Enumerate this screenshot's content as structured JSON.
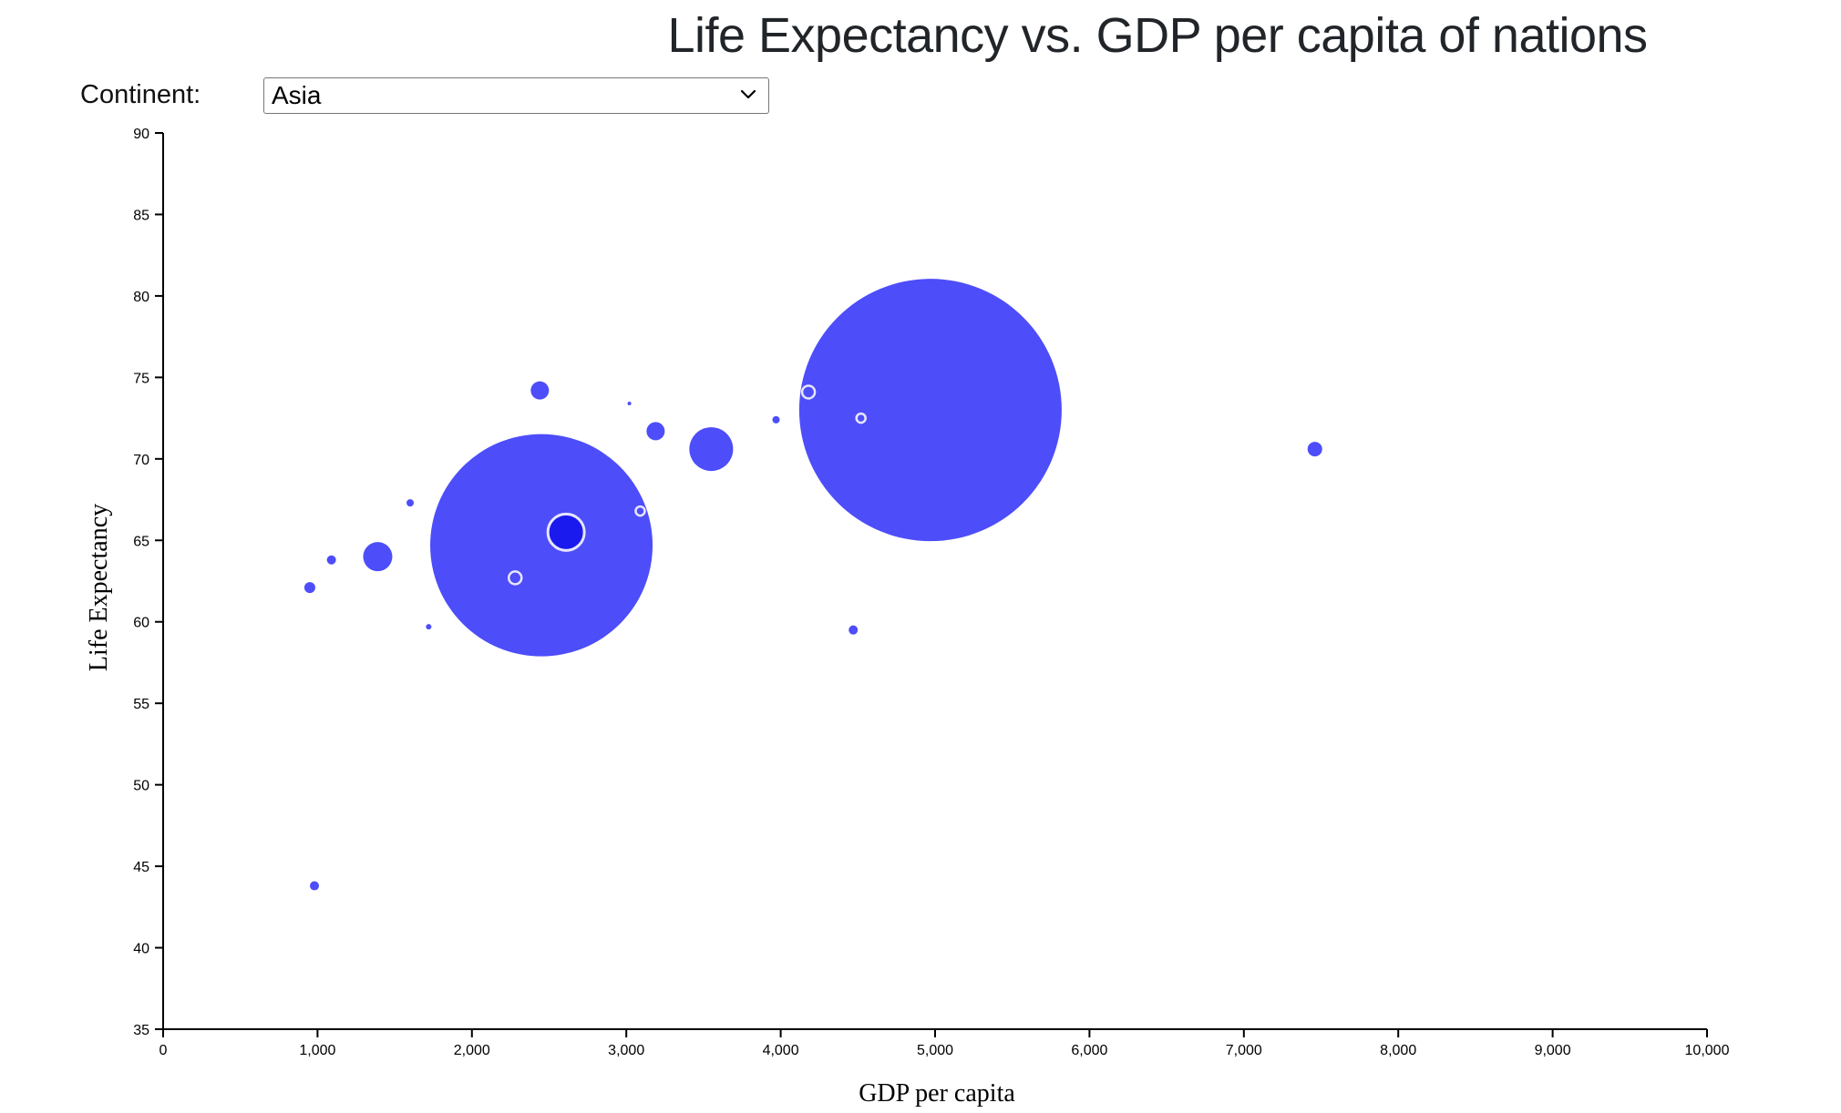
{
  "page": {
    "title": "Life Expectancy vs. GDP per capita of nations"
  },
  "filter": {
    "label": "Continent:",
    "selected": "Asia",
    "icon": "chevron-down-icon"
  },
  "colors": {
    "bubble": "#4d4dfa",
    "bubble_highlight": "#1a1aee",
    "ring": "#e6e6ff",
    "axis": "#000000"
  },
  "chart_data": {
    "type": "scatter",
    "xlabel": "GDP per capita",
    "ylabel": "Life Expectancy",
    "xlim": [
      0,
      10000
    ],
    "ylim": [
      35,
      90
    ],
    "xticks": [
      0,
      1000,
      2000,
      3000,
      4000,
      5000,
      6000,
      7000,
      8000,
      9000,
      10000
    ],
    "xtick_labels": [
      "0",
      "1,000",
      "2,000",
      "3,000",
      "4,000",
      "5,000",
      "6,000",
      "7,000",
      "8,000",
      "9,000",
      "10,000"
    ],
    "yticks": [
      35,
      40,
      45,
      50,
      55,
      60,
      65,
      70,
      75,
      80,
      85,
      90
    ],
    "ytick_labels": [
      "35",
      "40",
      "45",
      "50",
      "55",
      "60",
      "65",
      "70",
      "75",
      "80",
      "85",
      "90"
    ],
    "grid": false,
    "size_encoding": "bubble area",
    "points": [
      {
        "x": 4970,
        "y": 73.0,
        "r_px": 144
      },
      {
        "x": 2450,
        "y": 64.7,
        "r_px": 122
      },
      {
        "x": 2610,
        "y": 65.5,
        "r_px": 20,
        "outlined": true,
        "highlight": true
      },
      {
        "x": 3550,
        "y": 70.6,
        "r_px": 24
      },
      {
        "x": 1390,
        "y": 64.0,
        "r_px": 16
      },
      {
        "x": 2440,
        "y": 74.2,
        "r_px": 10
      },
      {
        "x": 3190,
        "y": 71.7,
        "r_px": 10
      },
      {
        "x": 7460,
        "y": 70.6,
        "r_px": 8
      },
      {
        "x": 950,
        "y": 62.1,
        "r_px": 6
      },
      {
        "x": 980,
        "y": 43.8,
        "r_px": 5
      },
      {
        "x": 1090,
        "y": 63.8,
        "r_px": 5
      },
      {
        "x": 1600,
        "y": 67.3,
        "r_px": 4
      },
      {
        "x": 2280,
        "y": 62.7,
        "r_px": 7,
        "outlined": true
      },
      {
        "x": 1720,
        "y": 59.7,
        "r_px": 3
      },
      {
        "x": 3020,
        "y": 73.4,
        "r_px": 2
      },
      {
        "x": 3090,
        "y": 66.8,
        "r_px": 5,
        "outlined": true
      },
      {
        "x": 3970,
        "y": 72.4,
        "r_px": 4
      },
      {
        "x": 4180,
        "y": 74.1,
        "r_px": 7,
        "outlined": true
      },
      {
        "x": 4520,
        "y": 72.5,
        "r_px": 5,
        "outlined": true
      },
      {
        "x": 4470,
        "y": 59.5,
        "r_px": 5
      }
    ]
  }
}
